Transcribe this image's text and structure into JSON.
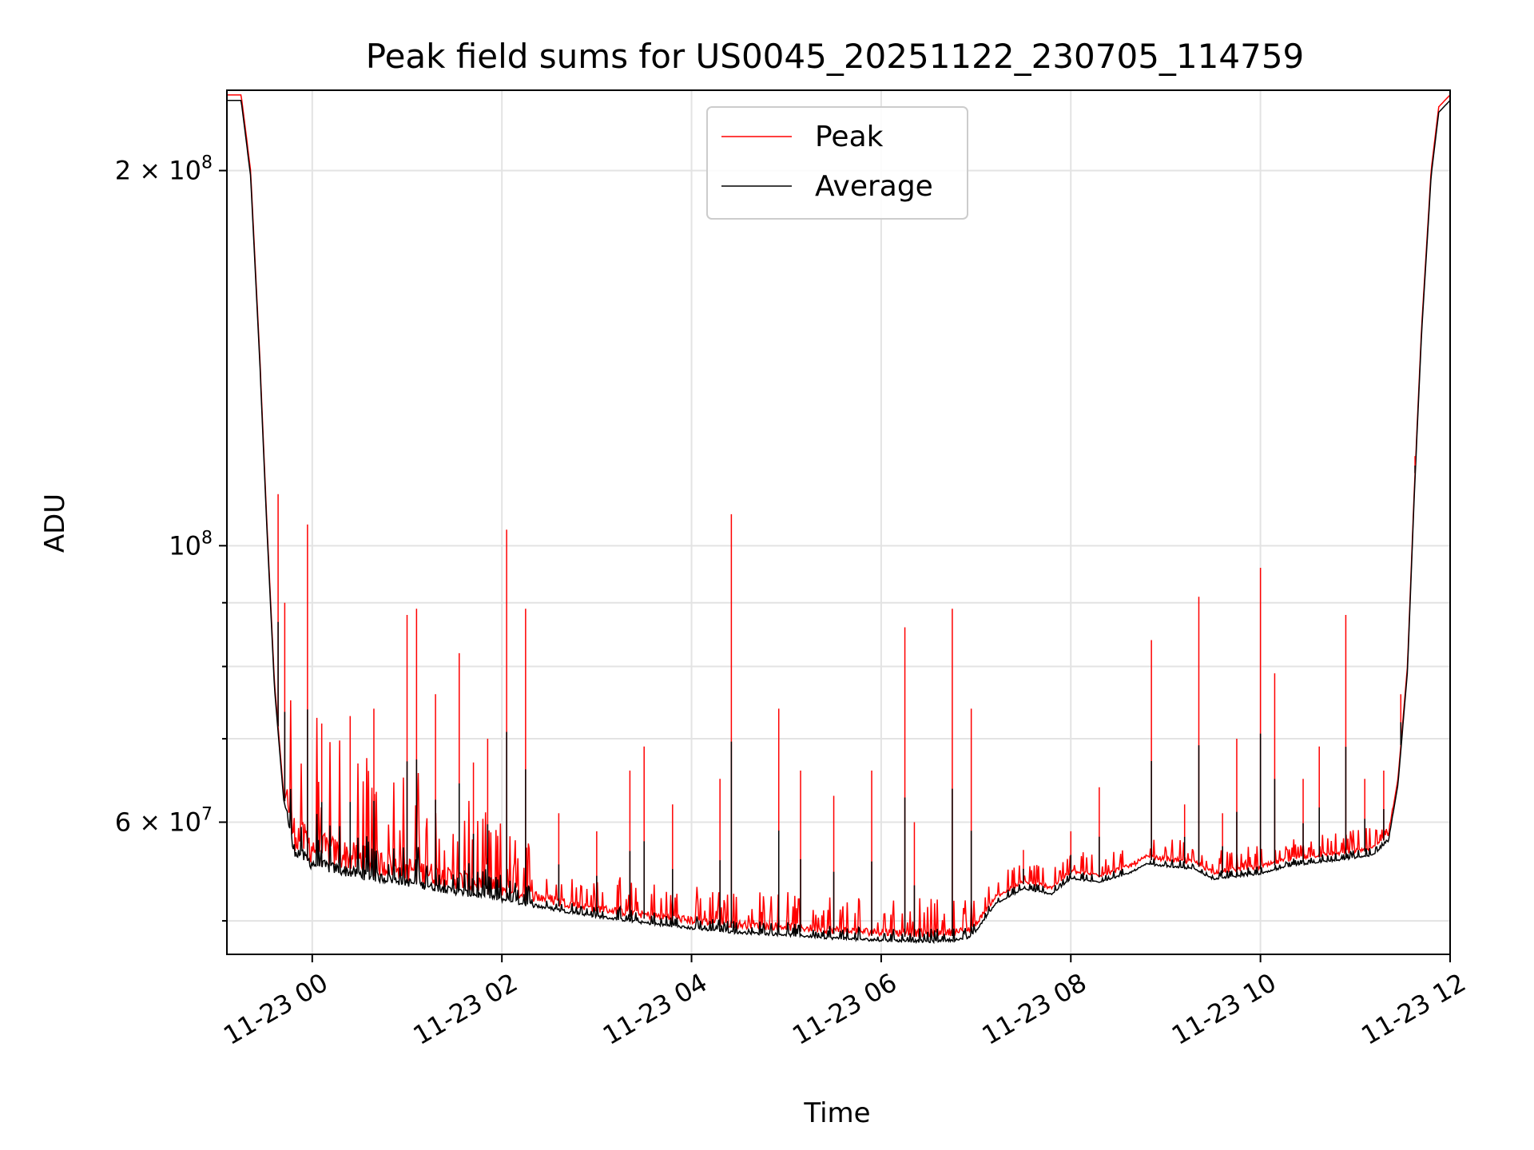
{
  "chart_data": {
    "type": "line",
    "title": "Peak field sums for US0045_20251122_230705_114759",
    "xlabel": "Time",
    "ylabel": "ADU",
    "yscale": "log",
    "ylim": [
      47000000,
      232000000
    ],
    "xlim": [
      -0.9,
      12.0
    ],
    "x_units": "hours since 11-23 00:00",
    "grid": true,
    "legend_position": "top-center",
    "x_ticks": [
      {
        "value": 0,
        "label": "11-23 00"
      },
      {
        "value": 2,
        "label": "11-23 02"
      },
      {
        "value": 4,
        "label": "11-23 04"
      },
      {
        "value": 6,
        "label": "11-23 06"
      },
      {
        "value": 8,
        "label": "11-23 08"
      },
      {
        "value": 10,
        "label": "11-23 10"
      },
      {
        "value": 12,
        "label": "11-23 12"
      }
    ],
    "y_ticks": [
      {
        "value": 200000000,
        "base": "2 × 10",
        "exp": "8"
      },
      {
        "value": 100000000,
        "base": "10",
        "exp": "8"
      },
      {
        "value": 60000000,
        "base": "6 × 10",
        "exp": "7"
      }
    ],
    "y_minor_ticks": [
      50000000,
      70000000,
      80000000,
      90000000
    ],
    "series": [
      {
        "name": "Peak",
        "color": "#ff0000",
        "baseline": [
          [
            -0.9,
            230000000
          ],
          [
            -0.75,
            230000000
          ],
          [
            -0.65,
            200000000
          ],
          [
            -0.55,
            140000000
          ],
          [
            -0.48,
            105000000
          ],
          [
            -0.4,
            78000000
          ],
          [
            -0.3,
            63000000
          ],
          [
            -0.2,
            57000000
          ],
          [
            0,
            55500000
          ],
          [
            0.5,
            54500000
          ],
          [
            1.0,
            53800000
          ],
          [
            1.5,
            53000000
          ],
          [
            2.0,
            52300000
          ],
          [
            2.5,
            51500000
          ],
          [
            3.0,
            50800000
          ],
          [
            3.5,
            50200000
          ],
          [
            4.0,
            49700000
          ],
          [
            4.5,
            49300000
          ],
          [
            5.0,
            49100000
          ],
          [
            5.5,
            48800000
          ],
          [
            6.0,
            48600000
          ],
          [
            6.5,
            48500000
          ],
          [
            6.9,
            48700000
          ],
          [
            7.0,
            49500000
          ],
          [
            7.2,
            52000000
          ],
          [
            7.5,
            53500000
          ],
          [
            7.8,
            53000000
          ],
          [
            8.0,
            54500000
          ],
          [
            8.3,
            54200000
          ],
          [
            8.6,
            55000000
          ],
          [
            8.8,
            56000000
          ],
          [
            9.0,
            55800000
          ],
          [
            9.3,
            55500000
          ],
          [
            9.5,
            54500000
          ],
          [
            9.8,
            54800000
          ],
          [
            10.0,
            55000000
          ],
          [
            10.3,
            55800000
          ],
          [
            10.6,
            56200000
          ],
          [
            10.9,
            56500000
          ],
          [
            11.2,
            57000000
          ],
          [
            11.35,
            58500000
          ],
          [
            11.45,
            65000000
          ],
          [
            11.55,
            80000000
          ],
          [
            11.62,
            110000000
          ],
          [
            11.7,
            150000000
          ],
          [
            11.8,
            200000000
          ],
          [
            11.88,
            225000000
          ],
          [
            12.0,
            230000000
          ]
        ],
        "spikes": [
          [
            -0.36,
            110000000
          ],
          [
            -0.29,
            90000000
          ],
          [
            -0.05,
            104000000
          ],
          [
            0.1,
            72000000
          ],
          [
            0.4,
            73000000
          ],
          [
            0.65,
            74000000
          ],
          [
            1.0,
            88000000
          ],
          [
            1.1,
            89000000
          ],
          [
            1.3,
            76000000
          ],
          [
            1.55,
            82000000
          ],
          [
            1.7,
            67000000
          ],
          [
            1.85,
            70000000
          ],
          [
            2.05,
            103000000
          ],
          [
            2.25,
            89000000
          ],
          [
            2.6,
            61000000
          ],
          [
            3.0,
            59000000
          ],
          [
            3.35,
            66000000
          ],
          [
            3.5,
            69000000
          ],
          [
            3.8,
            62000000
          ],
          [
            4.3,
            65000000
          ],
          [
            4.42,
            106000000
          ],
          [
            4.92,
            74000000
          ],
          [
            5.15,
            66000000
          ],
          [
            5.5,
            63000000
          ],
          [
            5.9,
            66000000
          ],
          [
            6.25,
            86000000
          ],
          [
            6.35,
            60000000
          ],
          [
            6.75,
            89000000
          ],
          [
            6.95,
            74000000
          ],
          [
            7.5,
            57000000
          ],
          [
            8.0,
            59000000
          ],
          [
            8.3,
            64000000
          ],
          [
            8.85,
            84000000
          ],
          [
            9.2,
            62000000
          ],
          [
            9.35,
            91000000
          ],
          [
            9.6,
            61000000
          ],
          [
            9.75,
            70000000
          ],
          [
            10.0,
            96000000
          ],
          [
            10.15,
            79000000
          ],
          [
            10.45,
            65000000
          ],
          [
            10.62,
            69000000
          ],
          [
            10.9,
            88000000
          ],
          [
            11.1,
            65000000
          ],
          [
            11.3,
            66000000
          ],
          [
            11.48,
            76000000
          ],
          [
            11.63,
            118000000
          ]
        ]
      },
      {
        "name": "Average",
        "color": "#000000",
        "spike_fraction": 0.45
      }
    ]
  }
}
